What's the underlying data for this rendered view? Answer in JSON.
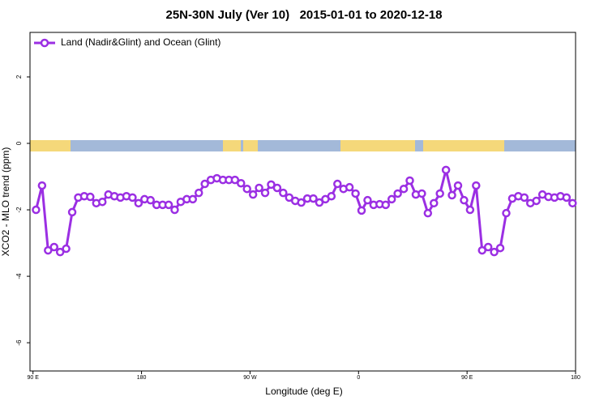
{
  "chart_data": {
    "type": "line",
    "title": "25N-30N July (Ver 10)   2015-01-01 to 2020-12-18",
    "x_label": "Longitude (deg E)",
    "y_label": "XCO2 - MLO trend (ppm)",
    "xlim": [
      87.5,
      540
    ],
    "ylim": [
      -6.85,
      3.34
    ],
    "xticks": [
      {
        "value": 90,
        "label": "90 E"
      },
      180,
      {
        "value": 270,
        "label": "90 W"
      },
      {
        "value": 360,
        "label": "0"
      },
      {
        "value": 450,
        "label": "90 E"
      },
      {
        "value": 540,
        "label": "180"
      }
    ],
    "yticks": [
      2,
      0,
      -2,
      -4,
      -6
    ],
    "legend_position": "top-left",
    "x": [
      92.5,
      97.5,
      102.5,
      107.5,
      112.5,
      117.5,
      122.5,
      127.5,
      132.5,
      137.5,
      142.5,
      147.5,
      152.5,
      157.5,
      162.5,
      167.5,
      172.5,
      177.5,
      182.5,
      187.5,
      192.5,
      197.5,
      202.5,
      207.5,
      212.5,
      217.5,
      222.5,
      227.5,
      232.5,
      237.5,
      242.5,
      247.5,
      252.5,
      257.5,
      262.5,
      267.5,
      272.5,
      277.5,
      282.5,
      287.5,
      292.5,
      297.5,
      302.5,
      307.5,
      312.5,
      317.5,
      322.5,
      327.5,
      332.5,
      337.5,
      342.5,
      347.5,
      352.5,
      357.5,
      362.5,
      367.5,
      372.5,
      377.5,
      382.5,
      387.5,
      392.5,
      397.5,
      402.5,
      407.5,
      412.5,
      417.5,
      422.5,
      427.5,
      432.5,
      437.5,
      442.5,
      447.5,
      452.5,
      457.5,
      462.5,
      467.5,
      472.5,
      477.5,
      482.5,
      487.5,
      492.5,
      497.5,
      502.5,
      507.5,
      512.5,
      517.5,
      522.5,
      527.5,
      532.5,
      537.5
    ],
    "series": [
      {
        "name": "Land (Nadir&Glint) and Ocean (Glint)",
        "color": "#9b2fe3",
        "values": [
          -2.0,
          -1.27,
          -3.22,
          -3.12,
          -3.27,
          -3.17,
          -2.07,
          -1.63,
          -1.59,
          -1.61,
          -1.8,
          -1.76,
          -1.54,
          -1.59,
          -1.63,
          -1.59,
          -1.63,
          -1.8,
          -1.68,
          -1.71,
          -1.85,
          -1.85,
          -1.85,
          -2.0,
          -1.76,
          -1.68,
          -1.68,
          -1.49,
          -1.22,
          -1.1,
          -1.05,
          -1.1,
          -1.1,
          -1.1,
          -1.2,
          -1.37,
          -1.54,
          -1.34,
          -1.49,
          -1.24,
          -1.34,
          -1.49,
          -1.63,
          -1.73,
          -1.78,
          -1.66,
          -1.66,
          -1.78,
          -1.68,
          -1.59,
          -1.22,
          -1.37,
          -1.32,
          -1.51,
          -2.02,
          -1.71,
          -1.85,
          -1.83,
          -1.85,
          -1.68,
          -1.51,
          -1.37,
          -1.12,
          -1.54,
          -1.51,
          -2.1,
          -1.8,
          -1.51,
          -0.8,
          -1.56,
          -1.27,
          -1.71,
          -2.0,
          -1.27,
          -3.22,
          -3.12,
          -3.27,
          -3.15,
          -2.1,
          -1.66,
          -1.59,
          -1.63,
          -1.8,
          -1.73,
          -1.54,
          -1.61,
          -1.63,
          -1.59,
          -1.63,
          -1.8
        ]
      }
    ]
  }
}
